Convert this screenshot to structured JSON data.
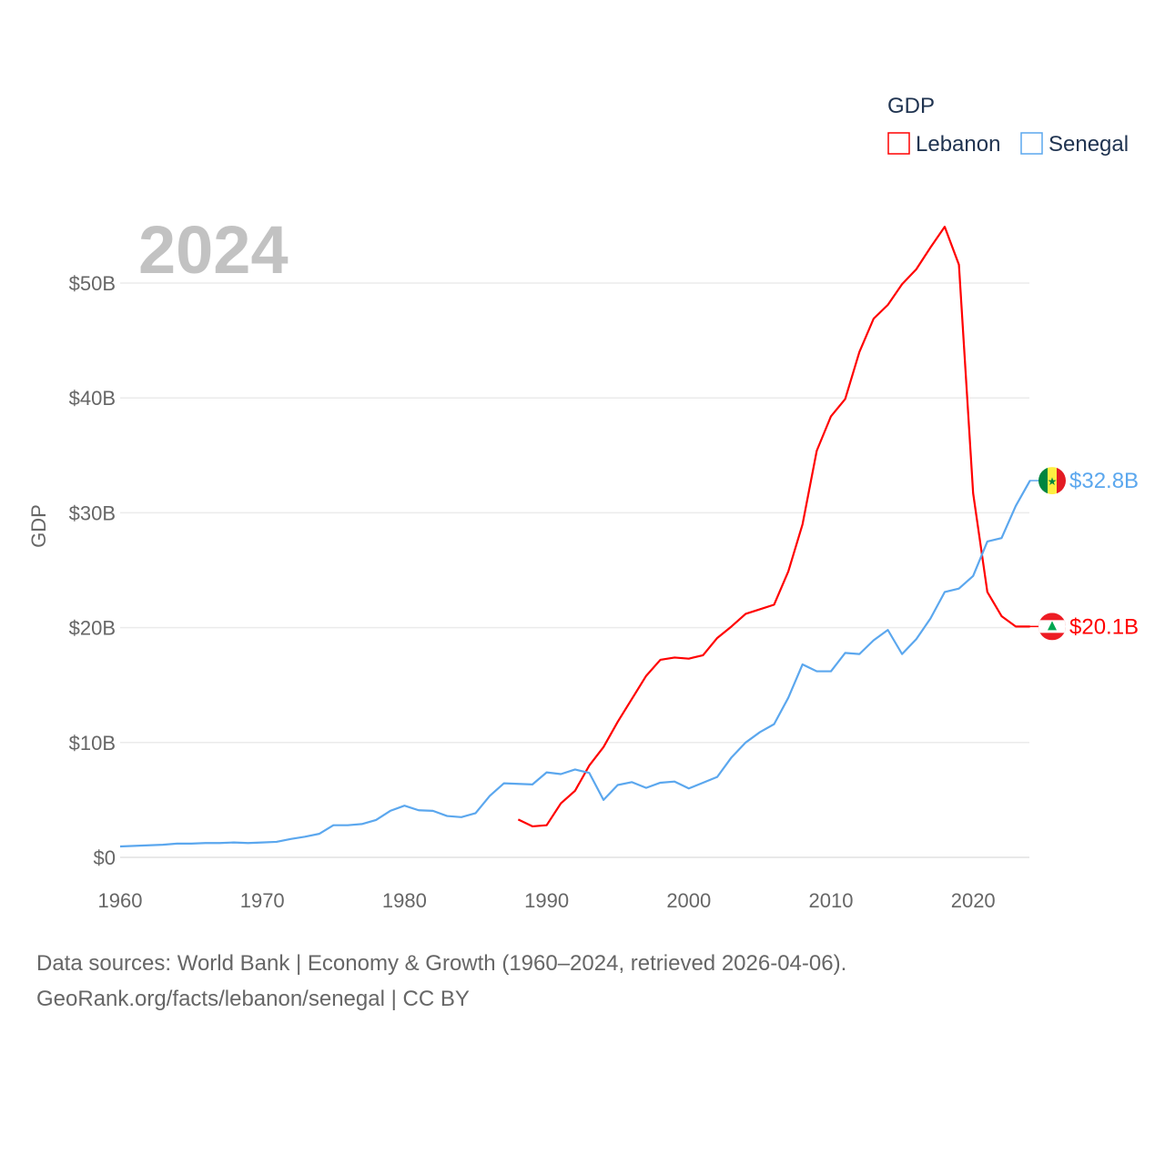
{
  "chart_data": {
    "type": "line",
    "title": "",
    "year_label": "2024",
    "xlabel": "",
    "ylabel": "GDP",
    "xlim": [
      1960,
      2024
    ],
    "ylim": [
      0,
      55
    ],
    "x_ticks": [
      "1960",
      "1970",
      "1980",
      "1990",
      "2000",
      "2010",
      "2020"
    ],
    "y_ticks": [
      {
        "v": 0,
        "label": "$0"
      },
      {
        "v": 10,
        "label": "$10B"
      },
      {
        "v": 20,
        "label": "$20B"
      },
      {
        "v": 30,
        "label": "$30B"
      },
      {
        "v": 40,
        "label": "$40B"
      },
      {
        "v": 50,
        "label": "$50B"
      }
    ],
    "grid": true,
    "legend": {
      "title": "GDP",
      "placement": "top-right"
    },
    "units": "billion USD",
    "series": [
      {
        "name": "Lebanon",
        "color": "#ff0000",
        "end_label": "$20.1B",
        "flag": "lebanon-flag",
        "start_year": 1988,
        "values": [
          3.3,
          2.7,
          2.8,
          4.7,
          5.8,
          8.0,
          9.6,
          11.8,
          13.8,
          15.8,
          17.2,
          17.4,
          17.3,
          17.6,
          19.1,
          20.1,
          21.2,
          21.6,
          22.0,
          24.9,
          29.0,
          35.4,
          38.4,
          39.9,
          44.0,
          46.9,
          48.1,
          49.9,
          51.2,
          53.1,
          54.9,
          51.6,
          31.7,
          23.1,
          21.0,
          20.1,
          20.1
        ]
      },
      {
        "name": "Senegal",
        "color": "#5ba7ee",
        "end_label": "$32.8B",
        "flag": "senegal-flag",
        "start_year": 1960,
        "values": [
          0.95,
          1.0,
          1.05,
          1.1,
          1.2,
          1.2,
          1.25,
          1.25,
          1.3,
          1.25,
          1.3,
          1.35,
          1.6,
          1.8,
          2.05,
          2.8,
          2.8,
          2.9,
          3.25,
          4.05,
          4.5,
          4.1,
          4.05,
          3.6,
          3.5,
          3.85,
          5.35,
          6.45,
          6.4,
          6.35,
          7.4,
          7.25,
          7.65,
          7.35,
          5.0,
          6.3,
          6.55,
          6.05,
          6.5,
          6.6,
          6.0,
          6.5,
          7.0,
          8.7,
          10.0,
          10.9,
          11.6,
          13.9,
          16.8,
          16.2,
          16.2,
          17.8,
          17.7,
          18.9,
          19.8,
          17.7,
          19.0,
          20.8,
          23.1,
          23.4,
          24.5,
          27.5,
          27.8,
          30.6,
          32.8
        ]
      }
    ]
  },
  "footer": {
    "line1": "Data sources: World Bank | Economy & Growth (1960–2024, retrieved 2026-04-06).",
    "line2": "GeoRank.org/facts/lebanon/senegal | CC BY"
  }
}
